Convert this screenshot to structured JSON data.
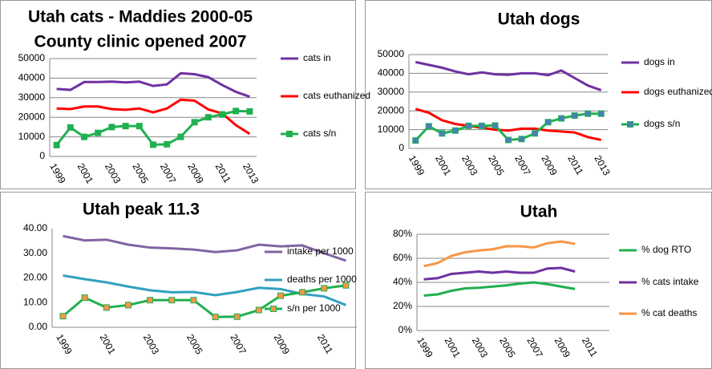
{
  "chart_data": [
    {
      "type": "line",
      "title": "Utah cats - Maddies 2000-05",
      "subtitle": "County clinic opened 2007",
      "categories": [
        "1999",
        null,
        "2001",
        null,
        "2003",
        null,
        "2005",
        null,
        "2007",
        null,
        "2009",
        null,
        "2011",
        null,
        "2013"
      ],
      "series": [
        {
          "name": "cats in",
          "color": "#7030a0",
          "values": [
            34500,
            34000,
            38000,
            38000,
            38200,
            37800,
            38200,
            36000,
            36800,
            42500,
            42000,
            40500,
            36500,
            33000,
            30500
          ]
        },
        {
          "name": "cats euthanized",
          "color": "#ff0000",
          "values": [
            24500,
            24200,
            25500,
            25500,
            24200,
            23800,
            24500,
            22500,
            24500,
            29000,
            28500,
            24000,
            22000,
            16000,
            11500
          ]
        },
        {
          "name": "cats s/n",
          "color": "#20b050",
          "marker": "square",
          "marker_color": "#20b050",
          "values": [
            5800,
            14800,
            10000,
            12000,
            15000,
            15500,
            15500,
            6000,
            6200,
            10000,
            17500,
            20000,
            21500,
            23200,
            23000
          ]
        }
      ],
      "ylim": [
        0,
        50000
      ],
      "yticks": [
        0,
        10000,
        20000,
        30000,
        40000,
        50000
      ],
      "grid": true,
      "legend": "right"
    },
    {
      "type": "line",
      "title": "Utah dogs",
      "categories": [
        "1999",
        null,
        "2001",
        null,
        "2003",
        null,
        "2005",
        null,
        "2007",
        null,
        "2009",
        null,
        "2011",
        null,
        "2013"
      ],
      "series": [
        {
          "name": "dogs in",
          "color": "#7030a0",
          "values": [
            46000,
            44500,
            43000,
            41000,
            39500,
            40500,
            39500,
            39200,
            40000,
            40000,
            39000,
            41500,
            37500,
            33500,
            31000
          ]
        },
        {
          "name": "dogs euthanized",
          "color": "#ff0000",
          "values": [
            21000,
            19000,
            15000,
            13000,
            12000,
            11000,
            10000,
            9500,
            10500,
            10500,
            9500,
            9000,
            8500,
            6000,
            4500
          ]
        },
        {
          "name": "dogs s/n",
          "color": "#20b050",
          "marker": "square",
          "marker_color": "#4a7ebb",
          "values": [
            4200,
            11800,
            8000,
            9500,
            12000,
            12000,
            12200,
            4500,
            5000,
            8000,
            14000,
            16000,
            17500,
            18500,
            18500
          ]
        }
      ],
      "ylim": [
        0,
        50000
      ],
      "yticks": [
        0,
        10000,
        20000,
        30000,
        40000,
        50000
      ],
      "grid": true,
      "legend": "right"
    },
    {
      "type": "line",
      "title": "Utah peak 11.3",
      "categories": [
        "1999",
        null,
        "2001",
        null,
        "2003",
        null,
        "2005",
        null,
        "2007",
        null,
        "2009",
        null,
        "2011",
        null
      ],
      "series": [
        {
          "name": "intake  per 1000",
          "color": "#8064a2",
          "values": [
            37,
            35.2,
            35.5,
            33.5,
            32.3,
            32,
            31.5,
            30.5,
            31.2,
            33.5,
            32.8,
            33.2,
            30,
            27
          ]
        },
        {
          "name": "deaths per 1000",
          "color": "#31a0bf",
          "values": [
            21,
            19.5,
            18.2,
            16.5,
            15,
            14.2,
            14.3,
            13,
            14.3,
            16,
            15.5,
            13.5,
            12.5,
            9
          ]
        },
        {
          "name": "s/n per 1000",
          "color": "#20b050",
          "marker": "square",
          "marker_color": "#f79646",
          "values": [
            4.5,
            12,
            8,
            9,
            11,
            11,
            11,
            4.2,
            4.3,
            7,
            12.8,
            14.2,
            15.8,
            17
          ]
        }
      ],
      "ylim": [
        0,
        40
      ],
      "yticks": [
        {
          "value": 0,
          "label": "0.00"
        },
        {
          "value": 10,
          "label": "10.00"
        },
        {
          "value": 20,
          "label": "20.00"
        },
        {
          "value": 30,
          "label": "30.00"
        },
        {
          "value": 40,
          "label": "40.00"
        }
      ],
      "grid": false,
      "legend": "right"
    },
    {
      "type": "line",
      "title": "Utah",
      "categories": [
        "1999",
        null,
        "2001",
        null,
        "2003",
        null,
        "2005",
        null,
        "2007",
        null,
        "2009",
        null,
        "2011",
        null
      ],
      "series": [
        {
          "name": "% dog RTO",
          "color": "#20b050",
          "values": [
            29,
            30,
            33,
            35,
            35.5,
            36.5,
            37.5,
            39,
            40,
            38.5,
            36.5,
            34.5,
            null,
            null
          ]
        },
        {
          "name": "% cats intake",
          "color": "#7030a0",
          "values": [
            42.5,
            43.5,
            47,
            48,
            49,
            48,
            49,
            48,
            48,
            51.5,
            52,
            49,
            null,
            null
          ]
        },
        {
          "name": "% cat deaths",
          "color": "#f79646",
          "values": [
            53.5,
            56,
            62,
            65,
            66.5,
            67.5,
            70,
            70,
            69,
            72.5,
            74,
            72,
            null,
            null
          ]
        }
      ],
      "ylim": [
        0,
        80
      ],
      "yticks": [
        {
          "value": 0,
          "label": "0%"
        },
        {
          "value": 20,
          "label": "20%"
        },
        {
          "value": 40,
          "label": "40%"
        },
        {
          "value": 60,
          "label": "60%"
        },
        {
          "value": 80,
          "label": "80%"
        }
      ],
      "grid": true,
      "legend": "right"
    }
  ]
}
